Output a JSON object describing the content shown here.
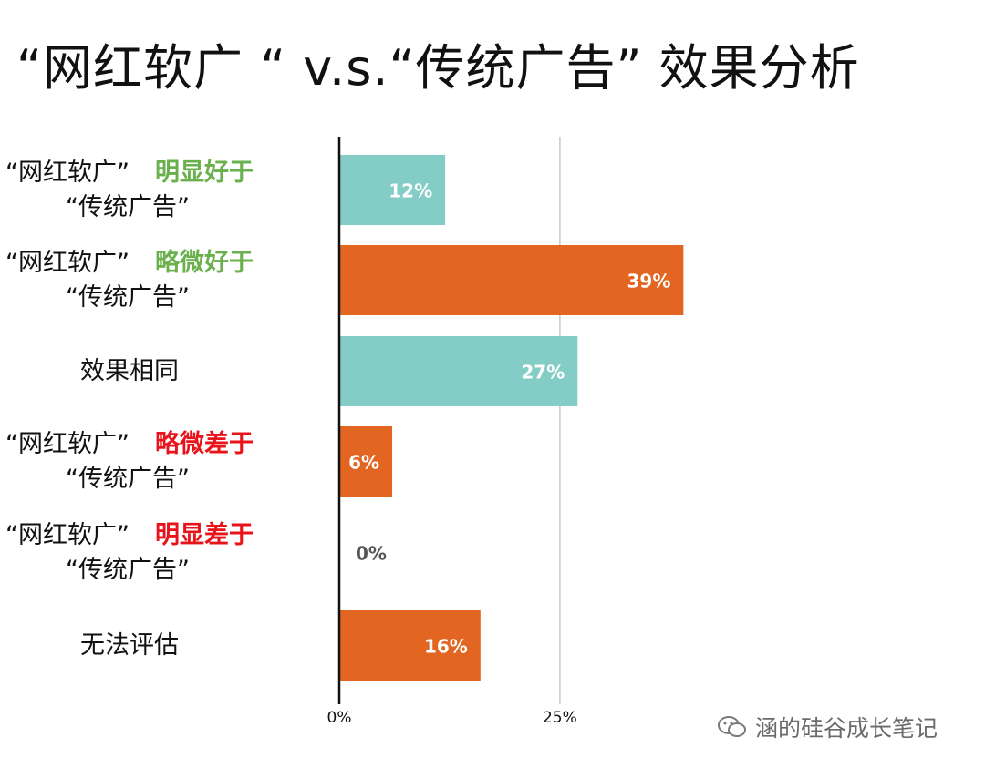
{
  "page": {
    "title": "“网红软广 “ v.s.“传统广告” 效果分析"
  },
  "chart_data": {
    "type": "bar",
    "orientation": "horizontal",
    "title": "“网红软广 “ v.s.“传统广告” 效果分析",
    "categories": [
      {
        "line1": "“网红软广”",
        "qualifier": "明显好于",
        "line2": "“传统广告”",
        "qualifier_color": "#6ab04c"
      },
      {
        "line1": "“网红软广”",
        "qualifier": "略微好于",
        "line2": "“传统广告”",
        "qualifier_color": "#6ab04c"
      },
      {
        "line1": "效果相同",
        "qualifier": "",
        "line2": "",
        "qualifier_color": ""
      },
      {
        "line1": "“网红软广”",
        "qualifier": "略微差于",
        "line2": "“传统广告”",
        "qualifier_color": "#e8141b"
      },
      {
        "line1": "“网红软广”",
        "qualifier": "明显差于",
        "line2": "“传统广告”",
        "qualifier_color": "#e8141b"
      },
      {
        "line1": "无法评估",
        "qualifier": "",
        "line2": "",
        "qualifier_color": ""
      }
    ],
    "values": [
      12,
      39,
      27,
      6,
      0,
      16
    ],
    "value_labels": [
      "12%",
      "39%",
      "27%",
      "6%",
      "0%",
      "16%"
    ],
    "bar_colors": [
      "#84ccc6",
      "#e36522",
      "#84ccc6",
      "#e36522",
      "#e36522",
      "#e36522"
    ],
    "xlim": [
      0,
      43.2
    ],
    "xticks": [
      0,
      25
    ],
    "xtick_labels": [
      "0%",
      "25%"
    ],
    "grid": "vertical at 25%"
  },
  "watermark": {
    "text": "涵的硅谷成长笔记",
    "icon": "wechat-icon"
  }
}
